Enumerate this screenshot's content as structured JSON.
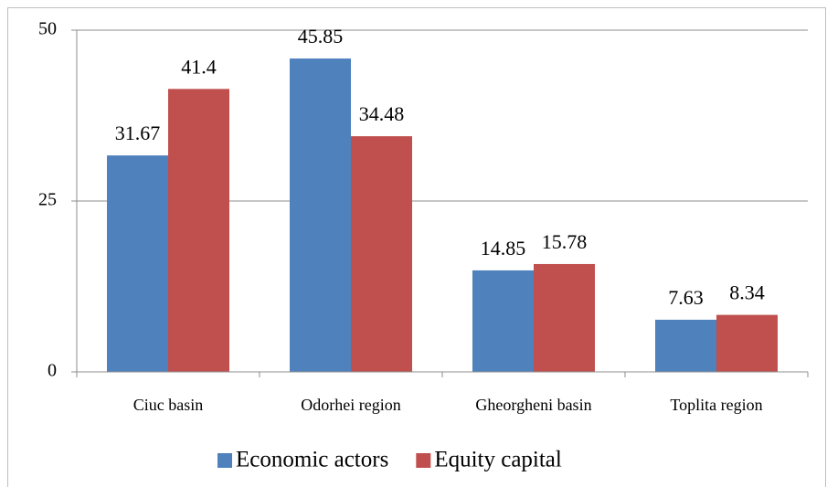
{
  "chart_data": {
    "type": "bar",
    "categories": [
      "Ciuc basin",
      "Odorhei region",
      "Gheorgheni basin",
      "Toplita region"
    ],
    "series": [
      {
        "name": "Economic actors",
        "color": "#4f81bd",
        "values": [
          31.67,
          45.85,
          14.85,
          7.63
        ]
      },
      {
        "name": "Equity capital",
        "color": "#c0504d",
        "values": [
          41.4,
          34.48,
          15.78,
          8.34
        ]
      }
    ],
    "ylim": [
      0,
      50
    ],
    "yticks": [
      0,
      25,
      50
    ],
    "grid": true,
    "legend": "bottom"
  }
}
